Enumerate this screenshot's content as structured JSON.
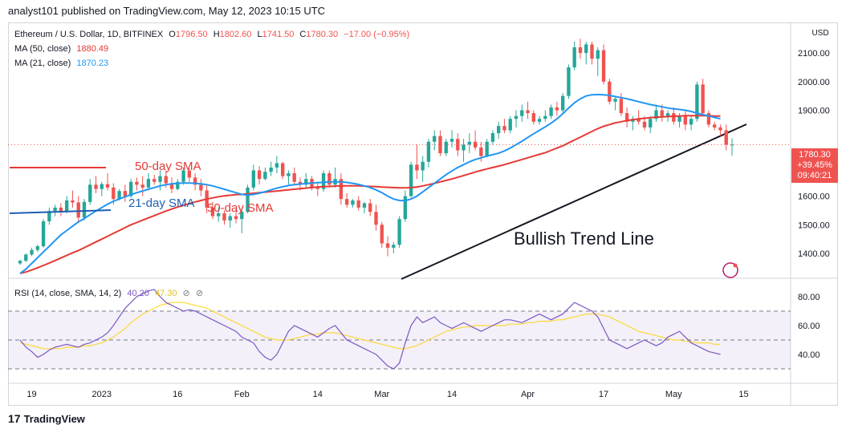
{
  "header": {
    "publisher_line": "analyst101 published on TradingView.com, May 12, 2023 10:15 UTC"
  },
  "legend": {
    "symbol": "Ethereum / U.S. Dollar, 1D, BITFINEX",
    "open_label": "O",
    "open": "1796.50",
    "high_label": "H",
    "high": "1802.60",
    "low_label": "L",
    "low": "1741.50",
    "close_label": "C",
    "close": "1780.30",
    "change": "−17.00 (−0.95%)",
    "ma50_label": "MA (50, close)",
    "ma50_value": "1880.49",
    "ma21_label": "MA (21, close)",
    "ma21_value": "1870.23",
    "rsi_label": "RSI (14, close, SMA, 14, 2)",
    "rsi_value": "40.20",
    "rsi_sma_value": "47.30"
  },
  "price_tag": {
    "price": "1780.30",
    "change": "+39.45%",
    "countdown": "09:40:21"
  },
  "annotations": {
    "sma50": "50-day SMA",
    "sma21": "21-day SMA",
    "sma50_overlap": "50-day SMA",
    "trendline": "Bullish Trend Line"
  },
  "footer": {
    "brand": "TradingView"
  },
  "colors": {
    "up": "#26a69a",
    "down": "#ef5350",
    "ma50": "#e53935",
    "ma21": "#2196f3",
    "rsi": "#7e57c2",
    "rsi_sma": "#fdd835"
  },
  "chart_data": {
    "type": "candlestick",
    "currency": "USD",
    "y_ticks": [
      "2100.00",
      "2000.00",
      "1900.00",
      "1600.00",
      "1500.00",
      "1400.00"
    ],
    "x_ticks": [
      "19",
      "2023",
      "16",
      "Feb",
      "14",
      "Mar",
      "14",
      "Apr",
      "17",
      "May",
      "15"
    ],
    "rsi_ticks": [
      "80.00",
      "60.00",
      "40.00"
    ],
    "ylim": [
      1330,
      2190
    ],
    "rsi_ylim": [
      20,
      90
    ],
    "rsi_bands": [
      70,
      50,
      30
    ],
    "candles": [
      [
        1365,
        1378,
        1360,
        1374
      ],
      [
        1374,
        1400,
        1370,
        1396
      ],
      [
        1396,
        1420,
        1390,
        1412
      ],
      [
        1412,
        1430,
        1405,
        1425
      ],
      [
        1425,
        1520,
        1420,
        1512
      ],
      [
        1512,
        1560,
        1500,
        1548
      ],
      [
        1548,
        1570,
        1530,
        1560
      ],
      [
        1560,
        1575,
        1530,
        1545
      ],
      [
        1545,
        1600,
        1540,
        1585
      ],
      [
        1585,
        1620,
        1560,
        1578
      ],
      [
        1578,
        1600,
        1510,
        1525
      ],
      [
        1525,
        1590,
        1515,
        1580
      ],
      [
        1580,
        1660,
        1570,
        1640
      ],
      [
        1640,
        1670,
        1610,
        1625
      ],
      [
        1625,
        1650,
        1600,
        1642
      ],
      [
        1642,
        1680,
        1620,
        1630
      ],
      [
        1630,
        1645,
        1570,
        1590
      ],
      [
        1590,
        1625,
        1585,
        1618
      ],
      [
        1618,
        1640,
        1580,
        1600
      ],
      [
        1600,
        1660,
        1595,
        1650
      ],
      [
        1650,
        1665,
        1620,
        1640
      ],
      [
        1640,
        1670,
        1600,
        1630
      ],
      [
        1630,
        1680,
        1620,
        1660
      ],
      [
        1660,
        1675,
        1640,
        1650
      ],
      [
        1650,
        1690,
        1620,
        1670
      ],
      [
        1670,
        1690,
        1630,
        1645
      ],
      [
        1645,
        1665,
        1610,
        1625
      ],
      [
        1625,
        1660,
        1620,
        1650
      ],
      [
        1650,
        1700,
        1640,
        1690
      ],
      [
        1690,
        1700,
        1650,
        1665
      ],
      [
        1665,
        1680,
        1620,
        1640
      ],
      [
        1640,
        1660,
        1600,
        1620
      ],
      [
        1620,
        1640,
        1540,
        1560
      ],
      [
        1560,
        1580,
        1520,
        1530
      ],
      [
        1530,
        1560,
        1510,
        1540
      ],
      [
        1540,
        1550,
        1500,
        1515
      ],
      [
        1515,
        1540,
        1490,
        1530
      ],
      [
        1530,
        1555,
        1505,
        1520
      ],
      [
        1520,
        1560,
        1470,
        1545
      ],
      [
        1545,
        1640,
        1540,
        1630
      ],
      [
        1630,
        1710,
        1620,
        1690
      ],
      [
        1690,
        1705,
        1640,
        1660
      ],
      [
        1660,
        1700,
        1655,
        1685
      ],
      [
        1685,
        1720,
        1670,
        1700
      ],
      [
        1700,
        1740,
        1680,
        1715
      ],
      [
        1715,
        1720,
        1660,
        1670
      ],
      [
        1670,
        1690,
        1640,
        1680
      ],
      [
        1680,
        1700,
        1640,
        1650
      ],
      [
        1650,
        1665,
        1620,
        1640
      ],
      [
        1640,
        1680,
        1630,
        1660
      ],
      [
        1660,
        1670,
        1620,
        1630
      ],
      [
        1630,
        1650,
        1600,
        1625
      ],
      [
        1625,
        1690,
        1615,
        1680
      ],
      [
        1680,
        1690,
        1630,
        1640
      ],
      [
        1640,
        1700,
        1630,
        1660
      ],
      [
        1660,
        1680,
        1570,
        1590
      ],
      [
        1590,
        1610,
        1560,
        1570
      ],
      [
        1570,
        1590,
        1560,
        1585
      ],
      [
        1585,
        1600,
        1550,
        1560
      ],
      [
        1560,
        1580,
        1540,
        1575
      ],
      [
        1575,
        1590,
        1530,
        1545
      ],
      [
        1545,
        1570,
        1480,
        1500
      ],
      [
        1500,
        1510,
        1420,
        1435
      ],
      [
        1435,
        1460,
        1390,
        1420
      ],
      [
        1420,
        1440,
        1400,
        1430
      ],
      [
        1430,
        1530,
        1420,
        1520
      ],
      [
        1520,
        1620,
        1510,
        1600
      ],
      [
        1600,
        1720,
        1595,
        1710
      ],
      [
        1710,
        1780,
        1660,
        1690
      ],
      [
        1690,
        1740,
        1650,
        1720
      ],
      [
        1720,
        1800,
        1700,
        1790
      ],
      [
        1790,
        1830,
        1760,
        1810
      ],
      [
        1810,
        1830,
        1740,
        1750
      ],
      [
        1750,
        1800,
        1740,
        1790
      ],
      [
        1790,
        1830,
        1770,
        1800
      ],
      [
        1800,
        1820,
        1740,
        1760
      ],
      [
        1760,
        1800,
        1720,
        1780
      ],
      [
        1780,
        1820,
        1750,
        1790
      ],
      [
        1790,
        1830,
        1760,
        1770
      ],
      [
        1770,
        1790,
        1720,
        1740
      ],
      [
        1740,
        1800,
        1735,
        1790
      ],
      [
        1790,
        1830,
        1780,
        1820
      ],
      [
        1820,
        1860,
        1800,
        1845
      ],
      [
        1845,
        1870,
        1820,
        1830
      ],
      [
        1830,
        1880,
        1820,
        1870
      ],
      [
        1870,
        1900,
        1840,
        1880
      ],
      [
        1880,
        1920,
        1860,
        1900
      ],
      [
        1900,
        1930,
        1870,
        1890
      ],
      [
        1890,
        1900,
        1850,
        1860
      ],
      [
        1860,
        1880,
        1850,
        1870
      ],
      [
        1870,
        1900,
        1860,
        1880
      ],
      [
        1880,
        1920,
        1870,
        1910
      ],
      [
        1910,
        1930,
        1880,
        1900
      ],
      [
        1900,
        1960,
        1890,
        1950
      ],
      [
        1950,
        2060,
        1940,
        2050
      ],
      [
        2050,
        2140,
        2040,
        2120
      ],
      [
        2120,
        2150,
        2080,
        2100
      ],
      [
        2100,
        2140,
        2060,
        2130
      ],
      [
        2130,
        2140,
        2060,
        2080
      ],
      [
        2080,
        2120,
        2020,
        2110
      ],
      [
        2110,
        2130,
        1990,
        2000
      ],
      [
        2000,
        2010,
        1920,
        1930
      ],
      [
        1930,
        1950,
        1900,
        1940
      ],
      [
        1940,
        1960,
        1880,
        1890
      ],
      [
        1890,
        1910,
        1840,
        1860
      ],
      [
        1860,
        1880,
        1830,
        1870
      ],
      [
        1870,
        1900,
        1850,
        1860
      ],
      [
        1860,
        1880,
        1830,
        1840
      ],
      [
        1840,
        1880,
        1820,
        1870
      ],
      [
        1870,
        1920,
        1860,
        1900
      ],
      [
        1900,
        1920,
        1860,
        1880
      ],
      [
        1880,
        1900,
        1860,
        1890
      ],
      [
        1890,
        1910,
        1850,
        1860
      ],
      [
        1860,
        1890,
        1840,
        1880
      ],
      [
        1880,
        1900,
        1830,
        1850
      ],
      [
        1850,
        1880,
        1830,
        1870
      ],
      [
        1870,
        2000,
        1860,
        1990
      ],
      [
        1990,
        2010,
        1880,
        1890
      ],
      [
        1890,
        1900,
        1840,
        1850
      ],
      [
        1850,
        1860,
        1830,
        1840
      ],
      [
        1840,
        1850,
        1810,
        1830
      ],
      [
        1830,
        1850,
        1760,
        1780
      ],
      [
        1780,
        1802,
        1741,
        1780
      ]
    ],
    "ma21": [
      1330,
      1345,
      1365,
      1385,
      1405,
      1425,
      1445,
      1465,
      1480,
      1495,
      1510,
      1522,
      1535,
      1548,
      1560,
      1572,
      1582,
      1590,
      1598,
      1605,
      1612,
      1618,
      1624,
      1630,
      1636,
      1640,
      1643,
      1645,
      1646,
      1646,
      1645,
      1643,
      1640,
      1636,
      1630,
      1624,
      1618,
      1612,
      1606,
      1604,
      1606,
      1610,
      1616,
      1622,
      1628,
      1633,
      1637,
      1640,
      1642,
      1644,
      1646,
      1647,
      1648,
      1650,
      1650,
      1650,
      1648,
      1645,
      1641,
      1636,
      1630,
      1622,
      1612,
      1600,
      1590,
      1585,
      1584,
      1590,
      1600,
      1615,
      1630,
      1645,
      1660,
      1675,
      1688,
      1700,
      1710,
      1720,
      1728,
      1734,
      1740,
      1745,
      1750,
      1758,
      1768,
      1780,
      1792,
      1805,
      1818,
      1830,
      1842,
      1855,
      1870,
      1888,
      1908,
      1926,
      1940,
      1950,
      1954,
      1955,
      1954,
      1952,
      1948,
      1944,
      1940,
      1935,
      1930,
      1925,
      1920,
      1916,
      1912,
      1908,
      1905,
      1903,
      1900,
      1896,
      1890,
      1885,
      1880,
      1875,
      1870
    ],
    "ma50": [
      1330,
      1335,
      1342,
      1350,
      1358,
      1366,
      1375,
      1384,
      1393,
      1402,
      1410,
      1420,
      1430,
      1440,
      1450,
      1460,
      1470,
      1480,
      1490,
      1500,
      1508,
      1516,
      1524,
      1532,
      1540,
      1548,
      1555,
      1562,
      1568,
      1574,
      1580,
      1585,
      1590,
      1594,
      1598,
      1601,
      1603,
      1605,
      1606,
      1608,
      1610,
      1612,
      1614,
      1616,
      1618,
      1620,
      1622,
      1624,
      1626,
      1628,
      1630,
      1632,
      1633,
      1634,
      1635,
      1636,
      1636,
      1636,
      1636,
      1635,
      1634,
      1633,
      1632,
      1631,
      1630,
      1629,
      1629,
      1630,
      1632,
      1636,
      1640,
      1645,
      1650,
      1655,
      1660,
      1666,
      1672,
      1678,
      1684,
      1690,
      1695,
      1700,
      1705,
      1710,
      1716,
      1722,
      1728,
      1734,
      1740,
      1746,
      1752,
      1760,
      1768,
      1776,
      1786,
      1796,
      1806,
      1816,
      1826,
      1836,
      1844,
      1850,
      1856,
      1860,
      1864,
      1867,
      1870,
      1872,
      1874,
      1876,
      1877,
      1878,
      1879,
      1880,
      1881,
      1881,
      1881,
      1881,
      1881,
      1880,
      1880
    ],
    "rsi": [
      50,
      45,
      42,
      38,
      40,
      43,
      45,
      46,
      47,
      46,
      45,
      47,
      48,
      50,
      52,
      55,
      60,
      66,
      72,
      76,
      80,
      82,
      84,
      85,
      80,
      76,
      74,
      72,
      70,
      71,
      70,
      68,
      66,
      64,
      62,
      60,
      58,
      56,
      52,
      50,
      48,
      42,
      38,
      36,
      40,
      48,
      56,
      60,
      58,
      56,
      54,
      52,
      55,
      58,
      60,
      55,
      50,
      48,
      46,
      44,
      42,
      40,
      36,
      32,
      30,
      34,
      48,
      60,
      66,
      62,
      64,
      66,
      62,
      60,
      58,
      60,
      62,
      60,
      58,
      56,
      58,
      60,
      62,
      64,
      64,
      63,
      62,
      64,
      66,
      68,
      66,
      64,
      66,
      68,
      72,
      76,
      74,
      72,
      70,
      66,
      58,
      50,
      48,
      46,
      44,
      46,
      48,
      50,
      48,
      46,
      48,
      52,
      54,
      56,
      52,
      48,
      46,
      44,
      42,
      41,
      40
    ],
    "rsi_sma": [
      48,
      47,
      46,
      45,
      44,
      44,
      44,
      44,
      45,
      45,
      45,
      46,
      46,
      47,
      48,
      50,
      52,
      55,
      58,
      62,
      65,
      68,
      70,
      72,
      74,
      75,
      76,
      76,
      76,
      75,
      74,
      73,
      72,
      70,
      68,
      66,
      64,
      62,
      60,
      58,
      56,
      54,
      52,
      51,
      50,
      50,
      50,
      51,
      52,
      53,
      54,
      54,
      55,
      55,
      55,
      54,
      53,
      52,
      51,
      50,
      49,
      48,
      47,
      46,
      45,
      44,
      44,
      45,
      46,
      48,
      50,
      52,
      54,
      56,
      57,
      58,
      59,
      59,
      60,
      60,
      60,
      60,
      60,
      60,
      61,
      61,
      61,
      62,
      62,
      63,
      63,
      63,
      64,
      64,
      65,
      66,
      67,
      68,
      68,
      68,
      67,
      66,
      64,
      62,
      60,
      58,
      56,
      55,
      54,
      53,
      52,
      51,
      50,
      50,
      49,
      49,
      48,
      48,
      48,
      47,
      47
    ]
  }
}
